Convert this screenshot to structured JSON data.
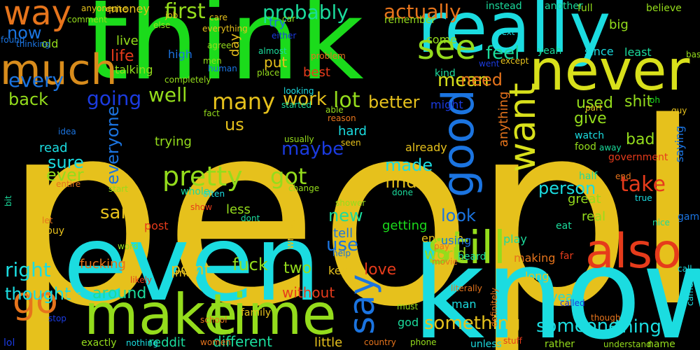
{
  "words": [
    {
      "text": "people",
      "color": "#e6c11c"
    },
    {
      "text": "think",
      "color": "#1bdb1b"
    },
    {
      "text": "know",
      "color": "#1bdce0"
    },
    {
      "text": "even",
      "color": "#1bdce0"
    },
    {
      "text": "really",
      "color": "#1bdce0"
    },
    {
      "text": "never",
      "color": "#d8e01b"
    },
    {
      "text": "make",
      "color": "#94dc1c"
    },
    {
      "text": "time",
      "color": "#94dc1c"
    },
    {
      "text": "also",
      "color": "#e63b1b"
    },
    {
      "text": "still",
      "color": "#94dc1c"
    },
    {
      "text": "good",
      "color": "#1b74e0"
    },
    {
      "text": "much",
      "color": "#d88c1c"
    },
    {
      "text": "way",
      "color": "#e6741c"
    },
    {
      "text": "go",
      "color": "#e6741c"
    },
    {
      "text": "see",
      "color": "#94dc1c"
    },
    {
      "text": "want",
      "color": "#d8e01b"
    },
    {
      "text": "say",
      "color": "#1b74e0"
    },
    {
      "text": "pretty",
      "color": "#94dc1c"
    },
    {
      "text": "first",
      "color": "#94dc1c"
    },
    {
      "text": "probably",
      "color": "#1bdb9c"
    },
    {
      "text": "actually",
      "color": "#e6741c"
    },
    {
      "text": "now",
      "color": "#1b74e0"
    },
    {
      "text": "every",
      "color": "#1b74e0"
    },
    {
      "text": "back",
      "color": "#94dc1c"
    },
    {
      "text": "going",
      "color": "#1b3be0"
    },
    {
      "text": "well",
      "color": "#94dc1c"
    },
    {
      "text": "many",
      "color": "#e6c11c"
    },
    {
      "text": "work",
      "color": "#e6c11c"
    },
    {
      "text": "lot",
      "color": "#94dc1c"
    },
    {
      "text": "better",
      "color": "#e6c11c"
    },
    {
      "text": "feel",
      "color": "#1bdb9c"
    },
    {
      "text": "mean",
      "color": "#d8e01b"
    },
    {
      "text": "need",
      "color": "#e6741c"
    },
    {
      "text": "life",
      "color": "#e63b1b"
    },
    {
      "text": "shit",
      "color": "#94dc1c"
    },
    {
      "text": "used",
      "color": "#94dc1c"
    },
    {
      "text": "give",
      "color": "#94dc1c"
    },
    {
      "text": "us",
      "color": "#e6c11c"
    },
    {
      "text": "got",
      "color": "#94dc1c"
    },
    {
      "text": "made",
      "color": "#1bdce0"
    },
    {
      "text": "maybe",
      "color": "#1b3be0"
    },
    {
      "text": "sure",
      "color": "#1bdce0"
    },
    {
      "text": "ever",
      "color": "#94dc1c"
    },
    {
      "text": "everyone",
      "color": "#1b74e0"
    },
    {
      "text": "said",
      "color": "#e6c11c"
    },
    {
      "text": "find",
      "color": "#e6c11c"
    },
    {
      "text": "take",
      "color": "#e63b1b"
    },
    {
      "text": "person",
      "color": "#1bdce0"
    },
    {
      "text": "bad",
      "color": "#94dc1c"
    },
    {
      "text": "look",
      "color": "#1b74e0"
    },
    {
      "text": "new",
      "color": "#1bdb9c"
    },
    {
      "text": "use",
      "color": "#1b74e0"
    },
    {
      "text": "right",
      "color": "#1bdce0"
    },
    {
      "text": "fuck",
      "color": "#94dc1c"
    },
    {
      "text": "two",
      "color": "#94dc1c"
    },
    {
      "text": "love",
      "color": "#e63b1b"
    },
    {
      "text": "world",
      "color": "#94dc1c"
    },
    {
      "text": "point",
      "color": "#e6c11c"
    },
    {
      "text": "around",
      "color": "#1bdb9c"
    },
    {
      "text": "thought",
      "color": "#1bdce0"
    },
    {
      "text": "without",
      "color": "#e63b1b"
    },
    {
      "text": "something",
      "color": "#e6c11c"
    },
    {
      "text": "someone",
      "color": "#1bdce0"
    },
    {
      "text": "thing",
      "color": "#1bdce0"
    },
    {
      "text": "different",
      "color": "#1bdb9c"
    },
    {
      "text": "reddit",
      "color": "#1bdb9c"
    },
    {
      "text": "little",
      "color": "#e6c11c"
    },
    {
      "text": "fucking",
      "color": "#e6741c"
    },
    {
      "text": "trying",
      "color": "#94dc1c"
    },
    {
      "text": "great",
      "color": "#94dc1c"
    },
    {
      "text": "real",
      "color": "#94dc1c"
    },
    {
      "text": "getting",
      "color": "#1bdb1b"
    },
    {
      "text": "enough",
      "color": "#e6c11c"
    },
    {
      "text": "tell",
      "color": "#1b74e0"
    },
    {
      "text": "less",
      "color": "#94dc1c"
    },
    {
      "text": "hard",
      "color": "#1bdce0"
    },
    {
      "text": "read",
      "color": "#1bdce0"
    },
    {
      "text": "live",
      "color": "#94dc1c"
    },
    {
      "text": "old",
      "color": "#94dc1c"
    },
    {
      "text": "put",
      "color": "#e6c11c"
    },
    {
      "text": "try",
      "color": "#1b74e0"
    },
    {
      "text": "best",
      "color": "#e63b1b"
    },
    {
      "text": "come",
      "color": "#94dc1c"
    },
    {
      "text": "saying",
      "color": "#1b74e0"
    },
    {
      "text": "long",
      "color": "#e6c11c"
    },
    {
      "text": "year",
      "color": "#1bdce0"
    },
    {
      "text": "day",
      "color": "#e6c11c"
    },
    {
      "text": "since",
      "color": "#1bdce0"
    },
    {
      "text": "least",
      "color": "#1bdb9c"
    },
    {
      "text": "yeah",
      "color": "#1bdb9c"
    },
    {
      "text": "big",
      "color": "#94dc1c"
    },
    {
      "text": "already",
      "color": "#e6c11c"
    },
    {
      "text": "anything",
      "color": "#e6741c"
    },
    {
      "text": "might",
      "color": "#1b3be0"
    },
    {
      "text": "money",
      "color": "#e6c11c"
    },
    {
      "text": "high",
      "color": "#1b74e0"
    },
    {
      "text": "talking",
      "color": "#94dc1c"
    },
    {
      "text": "may",
      "color": "#e6c11c"
    },
    {
      "text": "keep",
      "color": "#e6c11c"
    },
    {
      "text": "free",
      "color": "#e6c11c"
    },
    {
      "text": "whole",
      "color": "#1bdb9c"
    },
    {
      "text": "post",
      "color": "#e63b1b"
    },
    {
      "text": "using",
      "color": "#1b74e0"
    },
    {
      "text": "making",
      "color": "#e6741c"
    },
    {
      "text": "play",
      "color": "#1bdb9c"
    },
    {
      "text": "man",
      "color": "#1bdce0"
    },
    {
      "text": "god",
      "color": "#1bdb9c"
    },
    {
      "text": "game",
      "color": "#1b74e0"
    },
    {
      "text": "full",
      "color": "#94dc1c"
    },
    {
      "text": "believe",
      "color": "#94dc1c"
    },
    {
      "text": "another",
      "color": "#1bdb9c"
    },
    {
      "text": "instead",
      "color": "#1bdb9c"
    },
    {
      "text": "next",
      "color": "#1bdce0"
    },
    {
      "text": "kind",
      "color": "#1bdb9c"
    },
    {
      "text": "remember",
      "color": "#94dc1c"
    },
    {
      "text": "watch",
      "color": "#1bdce0"
    },
    {
      "text": "food",
      "color": "#94dc1c"
    },
    {
      "text": "away",
      "color": "#1bdb9c"
    },
    {
      "text": "government",
      "color": "#e63b1b"
    },
    {
      "text": "half",
      "color": "#1bdb9c"
    },
    {
      "text": "end",
      "color": "#e6741c"
    },
    {
      "text": "true",
      "color": "#1bdce0"
    },
    {
      "text": "nice",
      "color": "#1bdb9c"
    },
    {
      "text": "eat",
      "color": "#1bdb9c"
    },
    {
      "text": "far",
      "color": "#e63b1b"
    },
    {
      "text": "heard",
      "color": "#1bdb9c"
    },
    {
      "text": "call",
      "color": "#1bdce0"
    },
    {
      "text": "came",
      "color": "#1bdce0"
    },
    {
      "text": "though",
      "color": "#e6741c"
    },
    {
      "text": "name",
      "color": "#94dc1c"
    },
    {
      "text": "rather",
      "color": "#94dc1c"
    },
    {
      "text": "understand",
      "color": "#94dc1c"
    },
    {
      "text": "definitely",
      "color": "#e6741c"
    },
    {
      "text": "literally",
      "color": "#e6741c"
    },
    {
      "text": "must",
      "color": "#94dc1c"
    },
    {
      "text": "country",
      "color": "#e6741c"
    },
    {
      "text": "phone",
      "color": "#94dc1c"
    },
    {
      "text": "unless",
      "color": "#1bdce0"
    },
    {
      "text": "stuff",
      "color": "#e63b1b"
    },
    {
      "text": "help",
      "color": "#1b74e0"
    },
    {
      "text": "wrong",
      "color": "#e6c11c"
    },
    {
      "text": "pay",
      "color": "#e6741c"
    },
    {
      "text": "movie",
      "color": "#e6741c"
    },
    {
      "text": "stop",
      "color": "#1b3be0"
    },
    {
      "text": "exactly",
      "color": "#94dc1c"
    },
    {
      "text": "nothing",
      "color": "#1bdce0"
    },
    {
      "text": "lol",
      "color": "#1b3be0"
    },
    {
      "text": "school",
      "color": "#e6741c"
    },
    {
      "text": "women",
      "color": "#e6741c"
    },
    {
      "text": "family",
      "color": "#e6c11c"
    },
    {
      "text": "likely",
      "color": "#e63b1b"
    },
    {
      "text": "gets",
      "color": "#e6c11c"
    },
    {
      "text": "word",
      "color": "#94dc1c"
    },
    {
      "text": "buy",
      "color": "#e6c11c"
    },
    {
      "text": "let",
      "color": "#e6741c"
    },
    {
      "text": "entire",
      "color": "#e6741c"
    },
    {
      "text": "start",
      "color": "#94dc1c"
    },
    {
      "text": "idea",
      "color": "#1b74e0"
    },
    {
      "text": "bit",
      "color": "#1bdb9c"
    },
    {
      "text": "thinking",
      "color": "#1b74e0"
    },
    {
      "text": "found",
      "color": "#1b74e0"
    },
    {
      "text": "anyone",
      "color": "#e6c11c"
    },
    {
      "text": "quite",
      "color": "#e6c11c"
    },
    {
      "text": "comment",
      "color": "#94dc1c"
    },
    {
      "text": "else",
      "color": "#94dc1c"
    },
    {
      "text": "job",
      "color": "#e6c11c"
    },
    {
      "text": "care",
      "color": "#e6c11c"
    },
    {
      "text": "everything",
      "color": "#e6c11c"
    },
    {
      "text": "agree",
      "color": "#94dc1c"
    },
    {
      "text": "men",
      "color": "#94dc1c"
    },
    {
      "text": "almost",
      "color": "#1bdb9c"
    },
    {
      "text": "either",
      "color": "#1b3be0"
    },
    {
      "text": "car",
      "color": "#94dc1c"
    },
    {
      "text": "completely",
      "color": "#94dc1c"
    },
    {
      "text": "human",
      "color": "#1b74e0"
    },
    {
      "text": "place",
      "color": "#94dc1c"
    },
    {
      "text": "problem",
      "color": "#e6741c"
    },
    {
      "text": "went",
      "color": "#1b3be0"
    },
    {
      "text": "except",
      "color": "#e6c11c"
    },
    {
      "text": "basically",
      "color": "#94dc1c"
    },
    {
      "text": "oh",
      "color": "#1bdb1b"
    },
    {
      "text": "guy",
      "color": "#e6c11c"
    },
    {
      "text": "part",
      "color": "#e6c11c"
    },
    {
      "text": "looking",
      "color": "#1bdce0"
    },
    {
      "text": "started",
      "color": "#1bdb9c"
    },
    {
      "text": "fact",
      "color": "#94dc1c"
    },
    {
      "text": "able",
      "color": "#94dc1c"
    },
    {
      "text": "reason",
      "color": "#e6741c"
    },
    {
      "text": "usually",
      "color": "#94dc1c"
    },
    {
      "text": "seen",
      "color": "#e6c11c"
    },
    {
      "text": "often",
      "color": "#1bdce0"
    },
    {
      "text": "change",
      "color": "#94dc1c"
    },
    {
      "text": "show",
      "color": "#e63b1b"
    },
    {
      "text": "dont",
      "color": "#1bdb9c"
    },
    {
      "text": "shower",
      "color": "#94dc1c"
    },
    {
      "text": "done",
      "color": "#1bdb9c"
    },
    {
      "text": "called",
      "color": "#1b3be0"
    },
    {
      "text": "seem",
      "color": "#94dc1c"
    }
  ]
}
